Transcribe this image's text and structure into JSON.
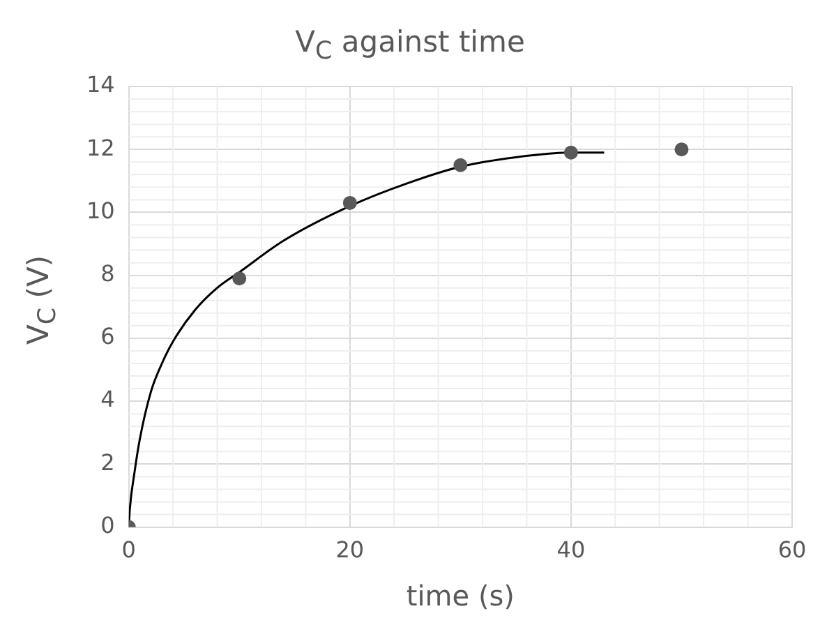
{
  "chart_data": {
    "type": "scatter",
    "title": "V$_{C}$ against time",
    "xlabel": "time (s)",
    "ylabel": "V$_{C}$ (V)",
    "xlim": [
      0,
      60
    ],
    "xticks": [
      0,
      20,
      40,
      60
    ],
    "ylim": [
      0,
      14
    ],
    "yticks": [
      0,
      2,
      4,
      6,
      8,
      10,
      12,
      14
    ],
    "grid": true,
    "legend": false,
    "marker": "circle",
    "series": [
      {
        "color": "#595959",
        "x": [
          0,
          10,
          20,
          30,
          40,
          50
        ],
        "values": [
          0,
          7.9,
          10.3,
          11.5,
          11.9,
          12
        ]
      },
      {
        "type": "line",
        "color": "#000000",
        "marker": "none",
        "x": [
          0,
          0.1,
          0.5,
          1,
          2,
          3,
          4,
          6,
          8,
          10,
          14,
          20,
          25,
          30,
          35,
          40,
          43
        ],
        "values": [
          0,
          0.6,
          1.7,
          2.8,
          4.3,
          5.2,
          5.9,
          6.9,
          7.6,
          8.1,
          9.1,
          10.2,
          10.9,
          11.45,
          11.75,
          11.9,
          11.9
        ]
      }
    ]
  }
}
